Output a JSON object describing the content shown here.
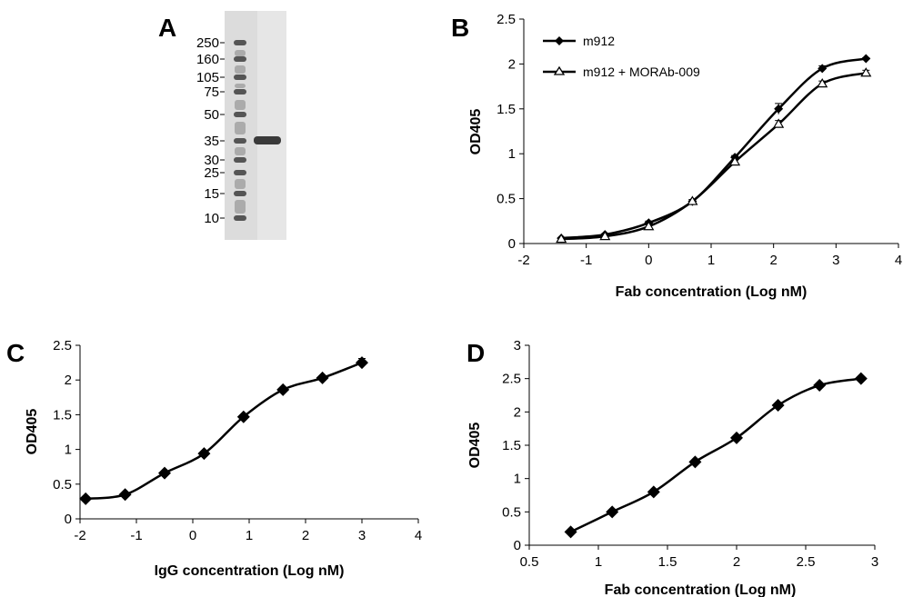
{
  "panels": [
    "A",
    "B",
    "C",
    "D"
  ],
  "gel": {
    "markers": [
      "250",
      "160",
      "105",
      "75",
      "50",
      "35",
      "30",
      "25",
      "15",
      "10"
    ]
  },
  "chart_data": [
    {
      "panel": "B",
      "type": "line",
      "xlabel": "Fab concentration (Log nM)",
      "ylabel": "OD405",
      "xlim": [
        -2,
        4
      ],
      "ylim": [
        0,
        2.5
      ],
      "xticks": [
        "-2",
        "-1",
        "0",
        "1",
        "2",
        "3",
        "4"
      ],
      "yticks": [
        "0",
        "0.5",
        "1",
        "1.5",
        "2",
        "2.5"
      ],
      "legend_position": "top-left",
      "series": [
        {
          "name": "m912",
          "marker": "filled-diamond",
          "x": [
            -1.4,
            -0.7,
            0,
            0.7,
            1.38,
            2.08,
            2.78,
            3.48
          ],
          "y": [
            0.06,
            0.1,
            0.23,
            0.47,
            0.96,
            1.5,
            1.95,
            2.06
          ],
          "err": [
            0,
            0.01,
            0.02,
            0.02,
            0.02,
            0.06,
            0.03,
            0.01
          ]
        },
        {
          "name": "m912 + MORAb-009",
          "marker": "open-triangle",
          "x": [
            -1.4,
            -0.7,
            0,
            0.7,
            1.38,
            2.08,
            2.78,
            3.48
          ],
          "y": [
            0.05,
            0.08,
            0.19,
            0.47,
            0.91,
            1.33,
            1.78,
            1.9
          ],
          "err": [
            0,
            0.01,
            0.02,
            0.02,
            0.02,
            0.04,
            0.03,
            0.03
          ]
        }
      ]
    },
    {
      "panel": "C",
      "type": "line",
      "xlabel": "IgG concentration (Log nM)",
      "ylabel": "OD405",
      "xlim": [
        -2,
        4
      ],
      "ylim": [
        0,
        2.5
      ],
      "xticks": [
        "-2",
        "-1",
        "0",
        "1",
        "2",
        "3",
        "4"
      ],
      "yticks": [
        "0",
        "0.5",
        "1",
        "1.5",
        "2",
        "2.5"
      ],
      "series": [
        {
          "marker": "filled-diamond",
          "x": [
            -1.9,
            -1.2,
            -0.5,
            0.2,
            0.9,
            1.6,
            2.3,
            3.0
          ],
          "y": [
            0.29,
            0.35,
            0.66,
            0.94,
            1.47,
            1.86,
            2.03,
            2.25
          ],
          "err": [
            0,
            0,
            0,
            0,
            0,
            0,
            0,
            0.06
          ]
        }
      ]
    },
    {
      "panel": "D",
      "type": "line",
      "xlabel": "Fab concentration (Log nM)",
      "ylabel": "OD405",
      "xlim": [
        0.5,
        3
      ],
      "ylim": [
        0,
        3
      ],
      "xticks": [
        "0.5",
        "1",
        "1.5",
        "2",
        "2.5",
        "3"
      ],
      "yticks": [
        "0",
        "0.5",
        "1",
        "1.5",
        "2",
        "2.5",
        "3"
      ],
      "series": [
        {
          "marker": "filled-diamond",
          "x": [
            0.8,
            1.1,
            1.4,
            1.7,
            2.0,
            2.3,
            2.6,
            2.9
          ],
          "y": [
            0.2,
            0.5,
            0.8,
            1.25,
            1.61,
            2.1,
            2.4,
            2.5
          ],
          "err": [
            0,
            0,
            0,
            0,
            0,
            0,
            0,
            0
          ]
        }
      ]
    }
  ]
}
